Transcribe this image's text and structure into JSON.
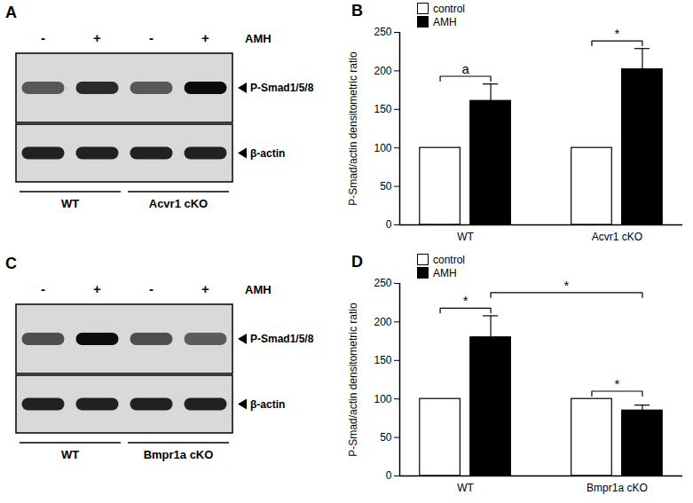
{
  "chart_data": [
    {
      "type": "bar",
      "title": "B",
      "categories": [
        "WT",
        "Acvr1 cKO"
      ],
      "series": [
        {
          "name": "control",
          "color": "#ffffff",
          "values": [
            100,
            100
          ]
        },
        {
          "name": "AMH",
          "color": "#000000",
          "values": [
            161,
            202
          ],
          "errors": [
            22,
            27
          ]
        }
      ],
      "ylabel": "P-Smad/actin densitometric ratio",
      "ylim": [
        0,
        250
      ],
      "yticks": [
        0,
        50,
        100,
        150,
        200,
        250
      ],
      "legend": "top-left",
      "annotations": [
        {
          "text": "a",
          "between": [
            {
              "category": "WT",
              "series": "control"
            },
            {
              "category": "WT",
              "series": "AMH"
            }
          ]
        },
        {
          "text": "*",
          "between": [
            {
              "category": "Acvr1 cKO",
              "series": "control"
            },
            {
              "category": "Acvr1 cKO",
              "series": "AMH"
            }
          ]
        }
      ]
    },
    {
      "type": "bar",
      "title": "D",
      "categories": [
        "WT",
        "Bmpr1a cKO"
      ],
      "series": [
        {
          "name": "control",
          "color": "#ffffff",
          "values": [
            100,
            100
          ]
        },
        {
          "name": "AMH",
          "color": "#000000",
          "values": [
            180,
            85
          ],
          "errors": [
            28,
            7
          ]
        }
      ],
      "ylabel": "P-Smad/actin densitometric ratio",
      "ylim": [
        0,
        250
      ],
      "yticks": [
        0,
        50,
        100,
        150,
        200,
        250
      ],
      "legend": "top-left",
      "annotations": [
        {
          "text": "*",
          "between": [
            {
              "category": "WT",
              "series": "control"
            },
            {
              "category": "WT",
              "series": "AMH"
            }
          ]
        },
        {
          "text": "*",
          "between": [
            {
              "category": "WT",
              "series": "AMH"
            },
            {
              "category": "Bmpr1a cKO",
              "series": "AMH"
            }
          ]
        },
        {
          "text": "*",
          "between": [
            {
              "category": "Bmpr1a cKO",
              "series": "control"
            },
            {
              "category": "Bmpr1a cKO",
              "series": "AMH"
            }
          ]
        }
      ]
    }
  ],
  "blots": [
    {
      "title": "A",
      "treatment": "AMH",
      "lanes": [
        "-",
        "+",
        "-",
        "+"
      ],
      "bands": [
        "P-Smad1/5/8",
        "β-actin"
      ],
      "groups": [
        "WT",
        "Acvr1 cKO"
      ]
    },
    {
      "title": "C",
      "treatment": "AMH",
      "lanes": [
        "-",
        "+",
        "-",
        "+"
      ],
      "bands": [
        "P-Smad1/5/8",
        "β-actin"
      ],
      "groups": [
        "WT",
        "Bmpr1a cKO"
      ]
    }
  ]
}
